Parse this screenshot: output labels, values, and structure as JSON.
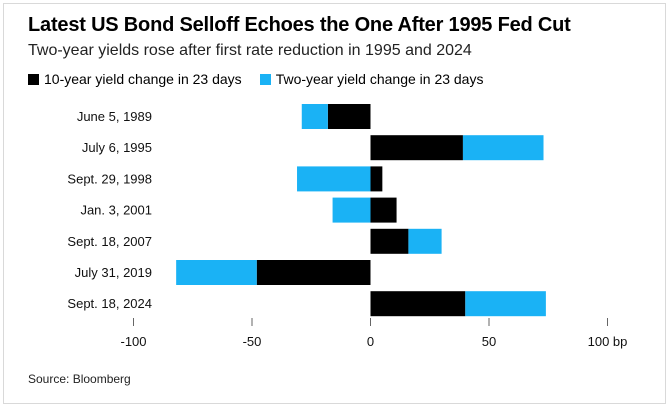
{
  "title": "Latest US Bond Selloff Echoes the One After 1995 Fed Cut",
  "subtitle": "Two-year yields rose after first rate reduction in 1995 and 2024",
  "source": "Source: Bloomberg",
  "chart_data": {
    "type": "bar",
    "orientation": "horizontal",
    "stacked": true,
    "categories": [
      "June 5, 1989",
      "July 6, 1995",
      "Sept. 29, 1998",
      "Jan. 3, 2001",
      "Sept. 18, 2007",
      "July 31, 2019",
      "Sept. 18, 2024"
    ],
    "series": [
      {
        "name": "10-year yield change in 23 days",
        "color": "#000000",
        "values": [
          -18,
          39,
          5,
          11,
          16,
          -48,
          40
        ]
      },
      {
        "name": "Two-year yield change in 23 days",
        "color": "#1ab2f5",
        "values": [
          -11,
          34,
          -31,
          -16,
          14,
          -34,
          34
        ]
      }
    ],
    "xticks": [
      {
        "value": -100,
        "label": "-100"
      },
      {
        "value": -50,
        "label": "-50"
      },
      {
        "value": 0,
        "label": "0"
      },
      {
        "value": 50,
        "label": "50"
      },
      {
        "value": 100,
        "label": "100 bp"
      }
    ],
    "xlim": [
      -100,
      100
    ]
  }
}
